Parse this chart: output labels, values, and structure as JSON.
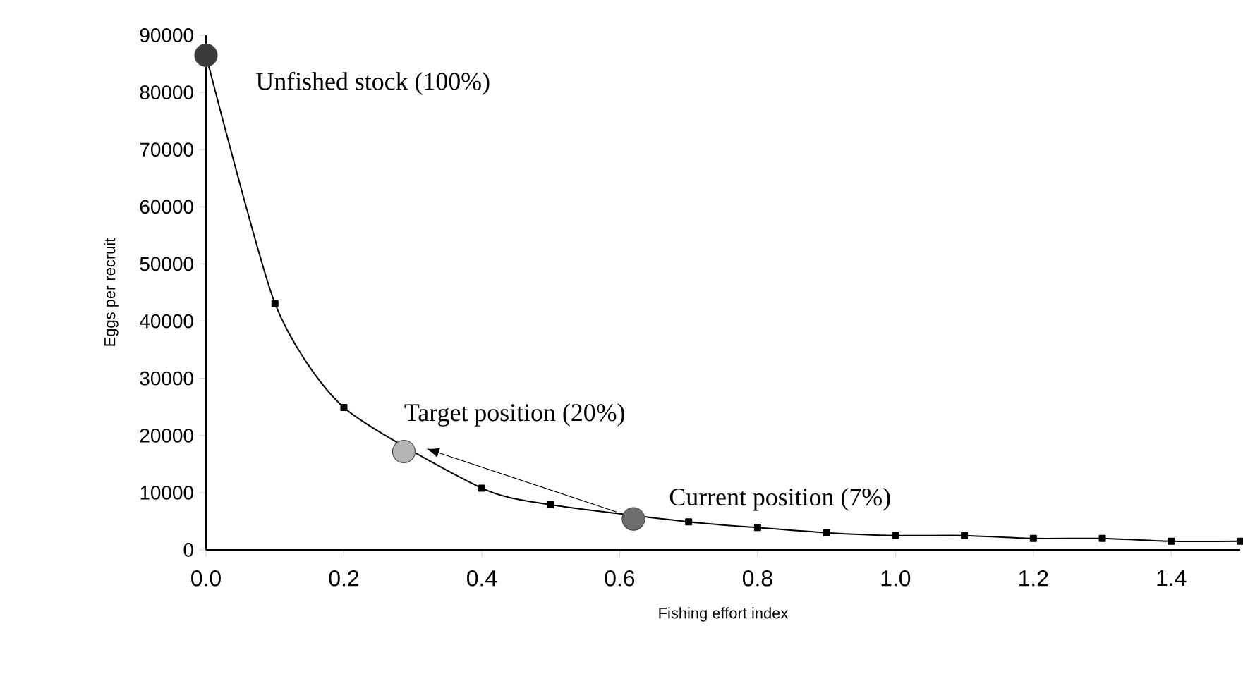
{
  "chart_data": {
    "type": "line",
    "xlabel": "Fishing effort index",
    "ylabel": "Eggs per recruit",
    "xlim": [
      0,
      1.5
    ],
    "ylim": [
      0,
      90000
    ],
    "xticks": [
      {
        "value": 0,
        "label": "0.0"
      },
      0.2,
      0.4,
      0.6,
      0.8,
      {
        "value": 1,
        "label": "1.0"
      },
      1.2,
      1.4
    ],
    "yticks": [
      0,
      10000,
      20000,
      30000,
      40000,
      50000,
      60000,
      70000,
      80000,
      90000
    ],
    "grid": false,
    "series": [
      {
        "color": "#000000",
        "marker": "square",
        "x": [
          0,
          0.1,
          0.2,
          0.4,
          0.5,
          0.7,
          0.8,
          0.9,
          1.0,
          1.1,
          1.2,
          1.3,
          1.4,
          1.5
        ],
        "values": [
          86500,
          43100,
          24900,
          10800,
          7900,
          4900,
          3900,
          3000,
          2500,
          2500,
          2000,
          2000,
          1500,
          1500
        ]
      },
      {
        "type": "scatter",
        "marker": "circle",
        "x": [
          0,
          0.287,
          0.62
        ],
        "values": [
          86500,
          17200,
          5400
        ],
        "colors": [
          "#3a3a3a",
          "#b4b4b4",
          "#6e6e6e"
        ]
      }
    ],
    "annotations": [
      {
        "text": "Unfished stock (100%)",
        "x": 0,
        "y": 86500
      },
      {
        "text": "Target position (20%)",
        "x": 0.287,
        "y": 17200
      },
      {
        "text": "Current position (7%)",
        "x": 0.62,
        "y": 5400
      }
    ]
  }
}
